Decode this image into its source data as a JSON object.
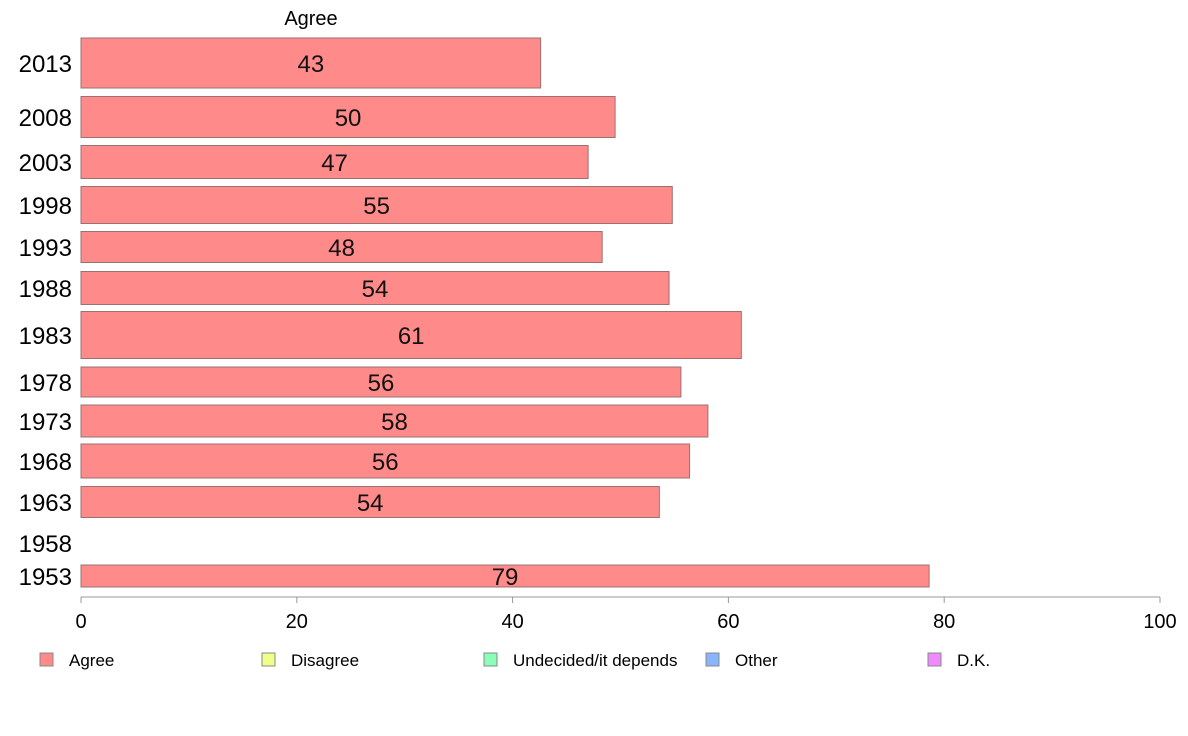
{
  "chart_data": {
    "type": "bar",
    "orientation": "horizontal",
    "header": "Agree",
    "categories": [
      "2013",
      "2008",
      "2003",
      "1998",
      "1993",
      "1988",
      "1983",
      "1978",
      "1973",
      "1968",
      "1963",
      "1958",
      "1953"
    ],
    "series": [
      {
        "name": "Agree",
        "color": "#ff8a8a",
        "values": [
          42.6,
          49.5,
          47.0,
          54.8,
          48.3,
          54.5,
          61.2,
          55.6,
          58.1,
          56.4,
          53.6,
          null,
          78.6
        ],
        "labels": [
          "43",
          "50",
          "47",
          "55",
          "48",
          "54",
          "61",
          "56",
          "58",
          "56",
          "54",
          "",
          "79"
        ]
      }
    ],
    "xlim": [
      0,
      100
    ],
    "x_ticks": [
      "0",
      "20",
      "40",
      "60",
      "80",
      "100"
    ],
    "legend": {
      "position": "bottom",
      "items": [
        {
          "label": "Agree",
          "color": "#ff8a8a"
        },
        {
          "label": "Disagree",
          "color": "#f0ff8a"
        },
        {
          "label": "Undecided/it depends",
          "color": "#8affb8"
        },
        {
          "label": "Other",
          "color": "#8ab4ff"
        },
        {
          "label": "D.K.",
          "color": "#f08aff"
        }
      ]
    },
    "grid": false
  }
}
